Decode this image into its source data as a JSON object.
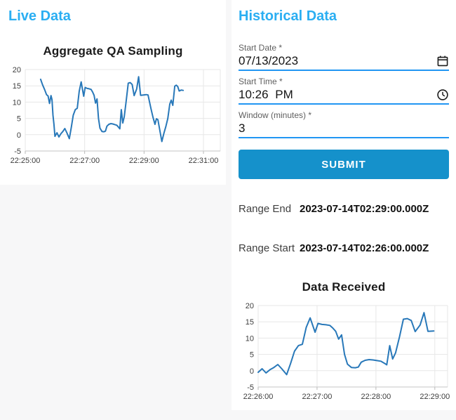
{
  "colors": {
    "background": "#f7f7f8",
    "card": "#ffffff",
    "heading_accent": "#2aaef2",
    "chart_line": "#2878b9",
    "submit_button": "#1591cb",
    "input_underline": "#2196f3"
  },
  "live_panel": {
    "heading": "Live Data"
  },
  "historical_panel": {
    "heading": "Historical Data",
    "fields": [
      {
        "label": "Start Date *",
        "value": "07/13/2023",
        "icon": "calendar-icon"
      },
      {
        "label": "Start Time *",
        "value": "10:26 PM",
        "icon": "clock-icon"
      },
      {
        "label": "Window (minutes) *",
        "value": "3",
        "icon": null
      }
    ],
    "submit_label": "SUBMIT",
    "range_end": {
      "label": "Range End",
      "value": "2023-07-14T02:29:00.000Z"
    },
    "range_start": {
      "label": "Range Start",
      "value": "2023-07-14T02:26:00.000Z"
    }
  },
  "chart_data": [
    {
      "type": "line",
      "title": "Aggregate QA Sampling",
      "x_unit": "seconds since 22:25:00",
      "x_domain": [
        0,
        394
      ],
      "ylim": [
        -5,
        20
      ],
      "y_ticks": [
        -5,
        0,
        5,
        10,
        15,
        20
      ],
      "x_ticks": [
        0,
        120,
        240,
        360
      ],
      "x_tick_labels": [
        "22:25:00",
        "22:27:00",
        "22:29:00",
        "22:31:00"
      ],
      "grid": true,
      "legend": false,
      "line_color": "#2878b9",
      "x": [
        31,
        35,
        39,
        43,
        46,
        49,
        52,
        54,
        56,
        58,
        60,
        64,
        68,
        72,
        76,
        80,
        84,
        89,
        93,
        97,
        101,
        105,
        109,
        113,
        118,
        121,
        125,
        129,
        133,
        136,
        139,
        142,
        145,
        148,
        151,
        155,
        159,
        162,
        165,
        169,
        173,
        177,
        181,
        185,
        188,
        191,
        194,
        197,
        200,
        204,
        208,
        212,
        216,
        220,
        225,
        229,
        233,
        239,
        244,
        248,
        254,
        258,
        262,
        265,
        268,
        276,
        280,
        284,
        288,
        292,
        295,
        298,
        302,
        305,
        308,
        311,
        315,
        319
      ],
      "y": [
        17.0,
        15.3,
        13.9,
        12.3,
        11.9,
        9.6,
        12.0,
        10.8,
        6.0,
        3.2,
        -0.5,
        0.6,
        -0.7,
        0.3,
        1.0,
        1.9,
        0.6,
        -1.2,
        2.2,
        6.0,
        7.7,
        8.1,
        13.3,
        16.2,
        11.8,
        14.5,
        14.2,
        14.1,
        13.9,
        13.1,
        12.1,
        9.7,
        11.0,
        5.0,
        2.0,
        1.0,
        0.9,
        1.1,
        2.6,
        3.2,
        3.4,
        3.3,
        3.1,
        2.9,
        2.4,
        1.8,
        7.7,
        3.6,
        5.5,
        10.4,
        15.8,
        16.0,
        15.4,
        12.0,
        14.0,
        17.8,
        12.1,
        12.2,
        12.3,
        12.2,
        8.0,
        5.4,
        3.2,
        4.9,
        4.6,
        -2.1,
        0.4,
        2.5,
        5.0,
        9.4,
        10.6,
        9.0,
        14.9,
        15.2,
        14.8,
        13.4,
        13.7,
        13.6
      ]
    },
    {
      "type": "line",
      "title": "Data Received",
      "x_unit": "seconds since 22:26:00",
      "x_domain": [
        0,
        193
      ],
      "ylim": [
        -5,
        20
      ],
      "y_ticks": [
        -5,
        0,
        5,
        10,
        15,
        20
      ],
      "x_ticks": [
        0,
        60,
        120,
        180
      ],
      "x_tick_labels": [
        "22:26:00",
        "22:27:00",
        "22:28:00",
        "22:29:00"
      ],
      "grid": true,
      "legend": false,
      "line_color": "#2878b9",
      "x": [
        0,
        4,
        8,
        12,
        16,
        20,
        24,
        29,
        33,
        37,
        41,
        45,
        49,
        53,
        58,
        61,
        65,
        69,
        73,
        76,
        79,
        82,
        85,
        88,
        91,
        95,
        99,
        102,
        105,
        109,
        113,
        117,
        121,
        125,
        128,
        131,
        134,
        137,
        140,
        144,
        148,
        152,
        156,
        160,
        165,
        169,
        173,
        179
      ],
      "y": [
        -0.5,
        0.6,
        -0.7,
        0.3,
        1.0,
        1.9,
        0.6,
        -1.2,
        2.2,
        6.0,
        7.7,
        8.1,
        13.3,
        16.2,
        11.8,
        14.5,
        14.2,
        14.1,
        13.9,
        13.1,
        12.1,
        9.7,
        11.0,
        5.0,
        2.0,
        1.0,
        0.9,
        1.1,
        2.6,
        3.2,
        3.4,
        3.3,
        3.1,
        2.9,
        2.4,
        1.8,
        7.7,
        3.6,
        5.5,
        10.4,
        15.8,
        16.0,
        15.4,
        12.0,
        14.0,
        17.8,
        12.1,
        12.2
      ]
    }
  ]
}
